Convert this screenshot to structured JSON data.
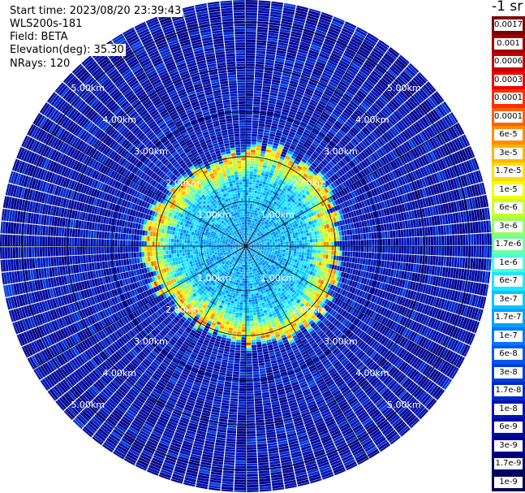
{
  "info": {
    "start_time": "Start time: 2023/08/20 23:39:43",
    "instrument": "WLS200s-181",
    "field": "Field: BETA",
    "elevation": "Elevation(deg): 35.30",
    "nrays": "NRays: 120"
  },
  "colorbar": {
    "title": "-1 sr",
    "labels": [
      "0.0017",
      "0.001",
      "0.0006",
      "0.0003",
      "0.00017",
      "0.0001",
      "6e-5",
      "3e-5",
      "1.7e-5",
      "1e-5",
      "6e-6",
      "3e-6",
      "1.7e-6",
      "1e-6",
      "6e-7",
      "3e-7",
      "1.7e-7",
      "1e-7",
      "6e-8",
      "3e-8",
      "1.7e-8",
      "1e-8",
      "6e-9",
      "3e-9",
      "1.7e-9",
      "1e-9"
    ],
    "colors": [
      "#800000",
      "#a00000",
      "#c80000",
      "#ee0000",
      "#ff3000",
      "#ff6000",
      "#ff8c00",
      "#ffb400",
      "#ffdc00",
      "#f0ff00",
      "#c8ff28",
      "#96ff5a",
      "#6effa0",
      "#46ffdc",
      "#1ee6ff",
      "#00c8ff",
      "#00a0ff",
      "#0078ff",
      "#0058f0",
      "#0040e0",
      "#0028c8",
      "#0014b4",
      "#000aa0",
      "#00008c",
      "#000070",
      "#000050"
    ]
  },
  "chart_data": {
    "type": "heatmap",
    "subtype": "PPI polar scan",
    "field": "BETA",
    "units": "sr-1",
    "scale": "log",
    "n_rays": 120,
    "elevation_deg": 35.3,
    "range_rings_km": [
      1,
      2,
      3,
      4,
      5
    ],
    "ring_labels": [
      "1.00km",
      "2.00km",
      "3.00km",
      "4.00km",
      "5.00km"
    ],
    "spokes_deg": 30,
    "max_range_km": 5.5,
    "beta_profile": [
      {
        "range_km": 0.0,
        "beta": "1.7e-7"
      },
      {
        "range_km": 1.5,
        "beta": "3e-7"
      },
      {
        "range_km": 1.85,
        "beta": "1e-5"
      },
      {
        "range_km": 2.0,
        "beta": "6e-5"
      },
      {
        "range_km": 2.2,
        "beta": "1e-8"
      },
      {
        "range_km": 5.5,
        "beta": "6e-9"
      }
    ]
  }
}
